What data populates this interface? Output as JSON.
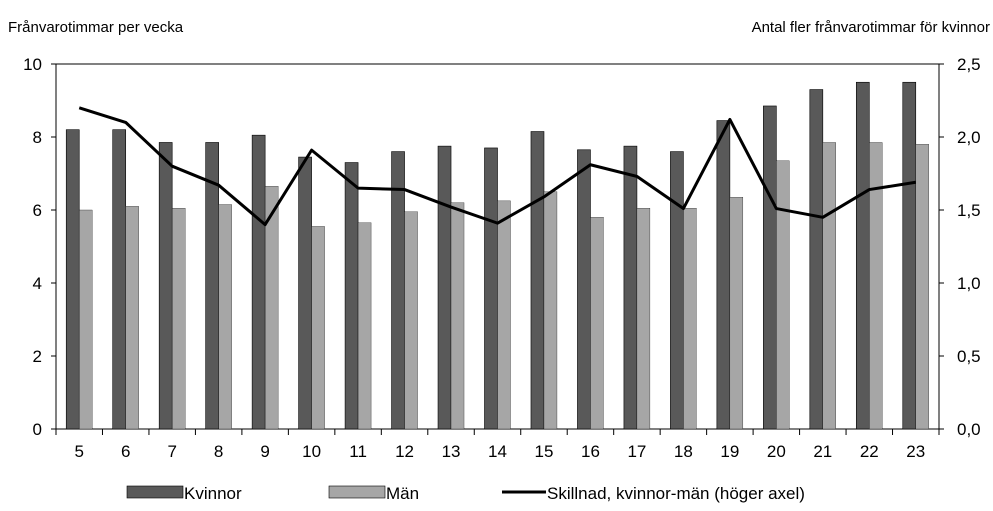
{
  "chart_data": {
    "type": "bar",
    "ylabel_left": "Frånvarotimmar per vecka",
    "ylabel_right": "Antal fler frånvarotimmar för kvinnor",
    "categories": [
      "5",
      "6",
      "7",
      "8",
      "9",
      "10",
      "11",
      "12",
      "13",
      "14",
      "15",
      "16",
      "17",
      "18",
      "19",
      "20",
      "21",
      "22",
      "23"
    ],
    "ylim_left": [
      0,
      10
    ],
    "ylim_right": [
      0,
      2.5
    ],
    "yticks_left": [
      "0",
      "2",
      "4",
      "6",
      "8",
      "10"
    ],
    "yticks_right": [
      "0,0",
      "0,5",
      "1,0",
      "1,5",
      "2,0",
      "2,5"
    ],
    "series": [
      {
        "name": "Kvinnor",
        "type": "bar",
        "axis": "left",
        "color": "#595959",
        "values": [
          8.2,
          8.2,
          7.85,
          7.85,
          8.05,
          7.45,
          7.3,
          7.6,
          7.75,
          7.7,
          8.15,
          7.65,
          7.75,
          7.6,
          8.45,
          8.85,
          9.3,
          9.5,
          9.5
        ]
      },
      {
        "name": "Män",
        "type": "bar",
        "axis": "left",
        "color": "#a6a6a6",
        "values": [
          6.0,
          6.1,
          6.05,
          6.15,
          6.65,
          5.55,
          5.65,
          5.95,
          6.2,
          6.25,
          6.5,
          5.8,
          6.05,
          6.05,
          6.35,
          7.35,
          7.85,
          7.85,
          7.8
        ]
      },
      {
        "name": "Skillnad, kvinnor-män (höger axel)",
        "type": "line",
        "axis": "right",
        "color": "#000000",
        "values": [
          2.2,
          2.1,
          1.8,
          1.67,
          1.4,
          1.91,
          1.65,
          1.64,
          1.52,
          1.41,
          1.59,
          1.81,
          1.73,
          1.51,
          2.12,
          1.51,
          1.45,
          1.64,
          1.69
        ]
      }
    ],
    "legend_position": "bottom",
    "grid": false
  }
}
